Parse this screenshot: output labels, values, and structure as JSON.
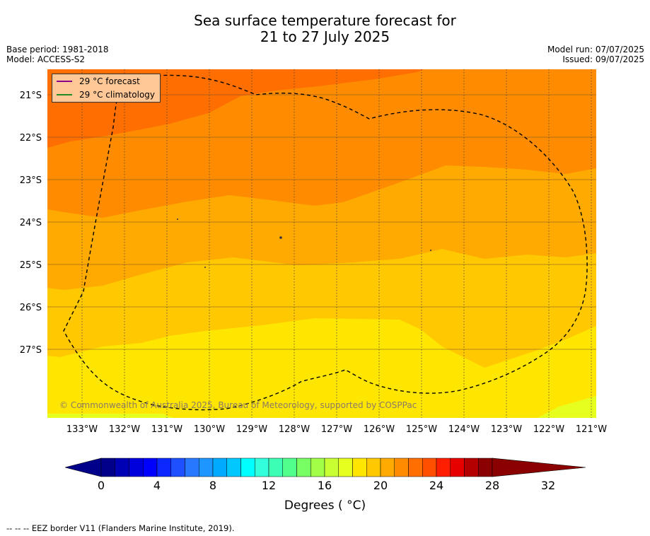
{
  "title_line1": "Sea surface temperature forecast for",
  "title_line2": "21 to 27 July 2025",
  "base_period": "Base period: 1981-2018",
  "model": "Model: ACCESS-S2",
  "model_run": "Model run: 07/07/2025",
  "issued": "Issued: 09/07/2025",
  "legend": [
    {
      "label": "29 °C  forecast",
      "color": "#8b008b"
    },
    {
      "label": "29 °C  climatology",
      "color": "#228b22"
    }
  ],
  "copyright": "© Commonwealth of Australia 2025, Bureau of Meteorology, supported by COSPPac",
  "lat_labels": [
    "21°S",
    "22°S",
    "23°S",
    "24°S",
    "25°S",
    "26°S",
    "27°S"
  ],
  "lon_labels": [
    "133°W",
    "132°W",
    "131°W",
    "130°W",
    "129°W",
    "128°W",
    "127°W",
    "126°W",
    "125°W",
    "124°W",
    "123°W",
    "122°W",
    "121°W"
  ],
  "colorbar": {
    "tick_labels": [
      "0",
      "4",
      "8",
      "12",
      "16",
      "20",
      "24",
      "28",
      "32"
    ],
    "label": "Degrees ( °C)",
    "colors": [
      "#00008b",
      "#0000b4",
      "#0000dc",
      "#0000ff",
      "#0a28ff",
      "#1e50ff",
      "#2878ff",
      "#1e96ff",
      "#00aaff",
      "#00c8ff",
      "#00ffff",
      "#32ffdc",
      "#3cffb4",
      "#50ff8c",
      "#78ff64",
      "#a0ff46",
      "#c8ff32",
      "#e6ff1e",
      "#ffe600",
      "#ffc800",
      "#ffaa00",
      "#ff8c00",
      "#ff6e00",
      "#ff5000",
      "#ff1e00",
      "#e60000",
      "#b40000",
      "#8b0000"
    ]
  },
  "footer": "--  --  -- EEZ border V11 (Flanders Marine Institute, 2019).",
  "map_colors": {
    "c27": "#ff6e00",
    "c26": "#ff8c00",
    "c25": "#ffaa00",
    "c24": "#ffc800",
    "c23": "#ffe600",
    "c22": "#e6ff1e"
  }
}
